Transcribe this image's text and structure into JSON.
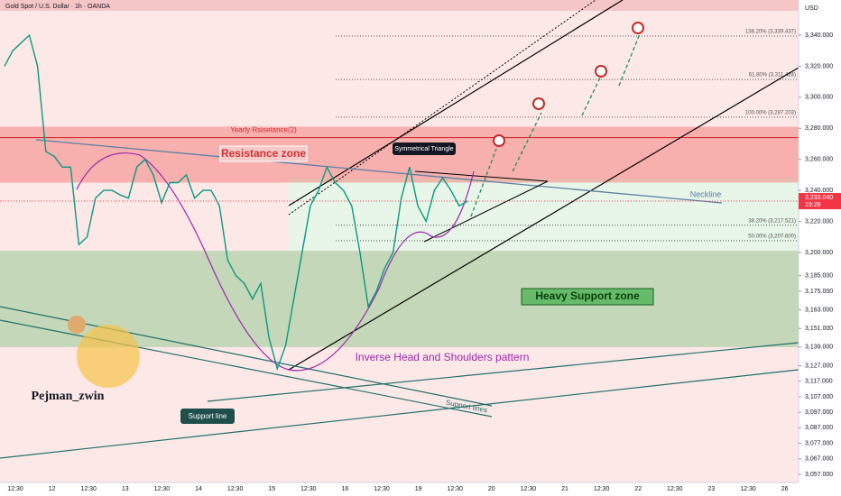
{
  "header": {
    "title": "Gold Spot / U.S. Dollar · 1h · OANDA",
    "currency": "USD",
    "author": "Pejman_zwin"
  },
  "chart_data": {
    "type": "line",
    "color": "#089981",
    "values": [
      3320,
      3330,
      3335,
      3340,
      3320,
      3265,
      3262,
      3255,
      3255,
      3205,
      3210,
      3235,
      3240,
      3240,
      3237,
      3235,
      3255,
      3260,
      3250,
      3232,
      3245,
      3245,
      3250,
      3235,
      3240,
      3240,
      3230,
      3195,
      3185,
      3180,
      3170,
      3180,
      3145,
      3125,
      3140,
      3170,
      3200,
      3230,
      3240,
      3255,
      3245,
      3240,
      3230,
      3200,
      3165,
      3175,
      3190,
      3200,
      3235,
      3255,
      3230,
      3220,
      3240,
      3248,
      3240,
      3230,
      3233
    ],
    "ylim": [
      3051.76,
      3362.66
    ],
    "yticks": [
      {
        "value": 3340,
        "label": "3,340.000"
      },
      {
        "value": 3320,
        "label": "3,320.000"
      },
      {
        "value": 3300,
        "label": "3,300.000"
      },
      {
        "value": 3280,
        "label": "3,280.000"
      },
      {
        "value": 3260,
        "label": "3,260.000"
      },
      {
        "value": 3240,
        "label": "3,240.000"
      },
      {
        "value": 3220,
        "label": "3,220.000"
      },
      {
        "value": 3200,
        "label": "3,200.000"
      },
      {
        "value": 3185,
        "label": "3,185.000"
      },
      {
        "value": 3175,
        "label": "3,175.000"
      },
      {
        "value": 3163,
        "label": "3,163.000"
      },
      {
        "value": 3151,
        "label": "3,151.000"
      },
      {
        "value": 3139,
        "label": "3,139.000"
      },
      {
        "value": 3127,
        "label": "3,127.000"
      },
      {
        "value": 3117,
        "label": "3,117.000"
      },
      {
        "value": 3107,
        "label": "3,107.000"
      },
      {
        "value": 3097,
        "label": "3,097.000"
      },
      {
        "value": 3087,
        "label": "3,087.000"
      },
      {
        "value": 3077,
        "label": "3,077.000"
      },
      {
        "value": 3067,
        "label": "3,067.000"
      },
      {
        "value": 3057,
        "label": "3,057.000"
      }
    ],
    "x_axis_labels": [
      "12:30",
      "12",
      "12:30",
      "13",
      "12:30",
      "14",
      "12:30",
      "15",
      "12:30",
      "16",
      "12:30",
      "19",
      "12:30",
      "20",
      "12:30",
      "21",
      "12:30",
      "22",
      "12:30",
      "23",
      "12:30",
      "26"
    ],
    "last_price": {
      "value": 3233.04,
      "label": "3,233.040"
    },
    "countdown": "19:28",
    "fib_levels": [
      {
        "value": 3339.437,
        "label": "138.20% (3,339.437)"
      },
      {
        "value": 3311.424,
        "label": "61.80% (3,311.424)"
      },
      {
        "value": 3287.203,
        "label": "100.00% (3,287.203)"
      },
      {
        "value": 3217.521,
        "label": "38.20% (3,217.521)"
      },
      {
        "value": 3207.6,
        "label": "50.00% (3,207.600)"
      }
    ],
    "zones": [
      {
        "label": "Resistance zone",
        "from": 3245,
        "to": 3281,
        "color": "rgba(239,83,80,0.38)"
      },
      {
        "label": "Heavy Support zone",
        "from": 3139,
        "to": 3201,
        "color": "rgba(102,187,106,0.38)"
      }
    ],
    "yearly_resistance": {
      "label": "Yearly Rsisetance(2)",
      "value": 3274
    },
    "annotations": {
      "triangle": "Symmetrical Triangle",
      "neckline": "Neckline",
      "pattern": "Inverse Head and Shoulders pattern",
      "support_lines": "Support lines",
      "support_line": "Support line"
    }
  }
}
